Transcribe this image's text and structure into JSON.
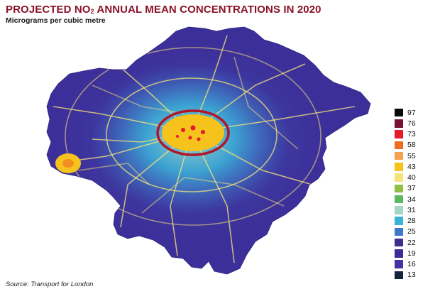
{
  "header": {
    "title_pre": "PROJECTED NO",
    "title_sub": "2",
    "title_post": " ANNUAL MEAN CONCENTRATIONS IN 2020",
    "subtitle": "Micrograms per cubic metre"
  },
  "source": "Source: Transport for London",
  "legend": {
    "items": [
      {
        "label": "97",
        "color": "#0a0a0a"
      },
      {
        "label": "76",
        "color": "#7a1030"
      },
      {
        "label": "73",
        "color": "#e31b2d"
      },
      {
        "label": "58",
        "color": "#f06d1f"
      },
      {
        "label": "55",
        "color": "#f4a24e"
      },
      {
        "label": "43",
        "color": "#f6c21c"
      },
      {
        "label": "40",
        "color": "#f6e47a"
      },
      {
        "label": "37",
        "color": "#8fbf43"
      },
      {
        "label": "34",
        "color": "#5cb860"
      },
      {
        "label": "31",
        "color": "#a6d7c5"
      },
      {
        "label": "28",
        "color": "#3cb1d8"
      },
      {
        "label": "25",
        "color": "#3f78c9"
      },
      {
        "label": "22",
        "color": "#3a2f8f"
      },
      {
        "label": "19",
        "color": "#3a2d96"
      },
      {
        "label": "16",
        "color": "#4631a3"
      },
      {
        "label": "13",
        "color": "#14233f"
      }
    ]
  },
  "map": {
    "outer_color": "#3d2f9a",
    "mid_color": "#3f78c9",
    "inner_color": "#3cb1d8",
    "road_color": "#f6e47a",
    "hotspot_color": "#f6c21c",
    "center_color": "#e31b2d",
    "ring_color": "#b0152a"
  }
}
